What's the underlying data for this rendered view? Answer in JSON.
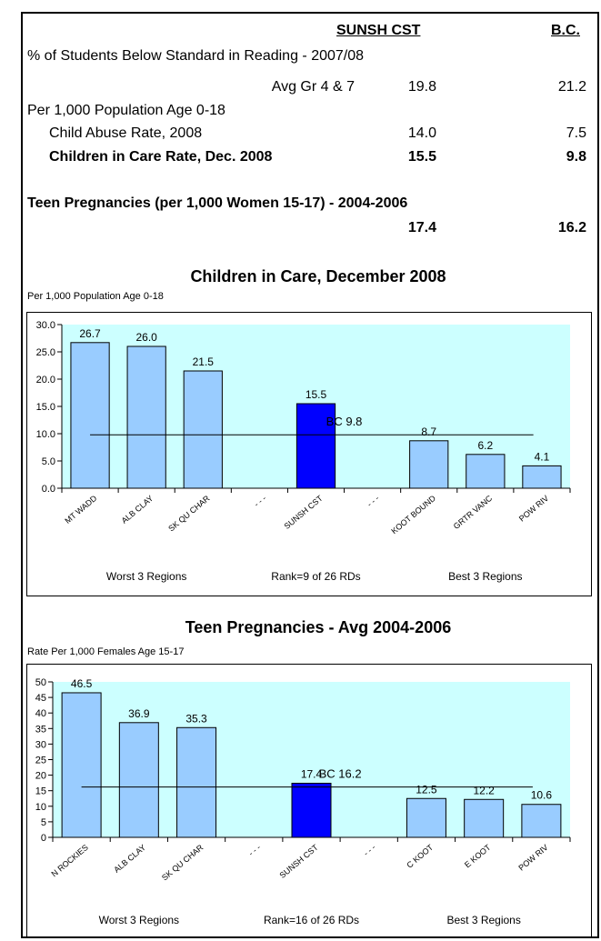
{
  "table": {
    "col_region": "SUNSH CST",
    "col_bc": "B.C.",
    "section1": "% of Students Below Standard in Reading - 2007/08",
    "row_reading": {
      "label": "Avg Gr 4 & 7",
      "region": "19.8",
      "bc": "21.2"
    },
    "section2": "Per 1,000 Population Age 0-18",
    "row_abuse": {
      "label": "Child Abuse Rate, 2008",
      "region": "14.0",
      "bc": "7.5"
    },
    "row_care": {
      "label": "Children in Care Rate, Dec. 2008",
      "region": "15.5",
      "bc": "9.8"
    },
    "section3": "Teen Pregnancies (per 1,000 Women 15-17) - 2004-2006",
    "row_teen": {
      "region": "17.4",
      "bc": "16.2"
    }
  },
  "chart_data": [
    {
      "type": "bar",
      "title": "Children in Care, December 2008",
      "subtitle": "Per 1,000 Population  Age 0-18",
      "categories": [
        "MT WADD",
        "ALB CLAY",
        "SK QU CHAR",
        "- - -",
        "SUNSH CST",
        "- - -",
        "KOOT BOUND",
        "GRTR VANC",
        "POW RIV"
      ],
      "values": [
        26.7,
        26.0,
        21.5,
        null,
        15.5,
        null,
        8.7,
        6.2,
        4.1
      ],
      "value_labels": [
        "26.7",
        "26.0",
        "21.5",
        "",
        "15.5",
        "",
        "8.7",
        "6.2",
        "4.1"
      ],
      "highlight_index": 4,
      "reference_line": {
        "label": "BC 9.8",
        "value": 9.8
      },
      "yticks": [
        "0.0",
        "5.0",
        "10.0",
        "15.0",
        "20.0",
        "25.0",
        "30.0"
      ],
      "ylim": [
        0,
        30
      ],
      "footer": [
        "Worst 3 Regions",
        "Rank=9 of 26 RDs",
        "Best 3 Regions"
      ],
      "colors": {
        "bar": "#99ccff",
        "highlight": "#0000ff",
        "plot_bg": "#ccffff"
      }
    },
    {
      "type": "bar",
      "title": "Teen Pregnancies - Avg 2004-2006",
      "subtitle": "Rate Per 1,000 Females Age 15-17",
      "categories": [
        "N ROCKIES",
        "ALB CLAY",
        "SK QU CHAR",
        "- - -",
        "SUNSH CST",
        "- - -",
        "C KOOT",
        "E KOOT",
        "POW RIV"
      ],
      "values": [
        46.5,
        36.9,
        35.3,
        null,
        17.4,
        null,
        12.5,
        12.2,
        10.6
      ],
      "value_labels": [
        "46.5",
        "36.9",
        "35.3",
        "",
        "17.4",
        "",
        "12.5",
        "12.2",
        "10.6"
      ],
      "highlight_index": 4,
      "reference_line": {
        "label": "BC 16.2",
        "value": 16.2
      },
      "yticks": [
        "0",
        "5",
        "10",
        "15",
        "20",
        "25",
        "30",
        "35",
        "40",
        "45",
        "50"
      ],
      "ylim": [
        0,
        50
      ],
      "footer": [
        "Worst 3 Regions",
        "Rank=16 of 26 RDs",
        "Best 3 Regions"
      ],
      "colors": {
        "bar": "#99ccff",
        "highlight": "#0000ff",
        "plot_bg": "#ccffff"
      }
    }
  ]
}
